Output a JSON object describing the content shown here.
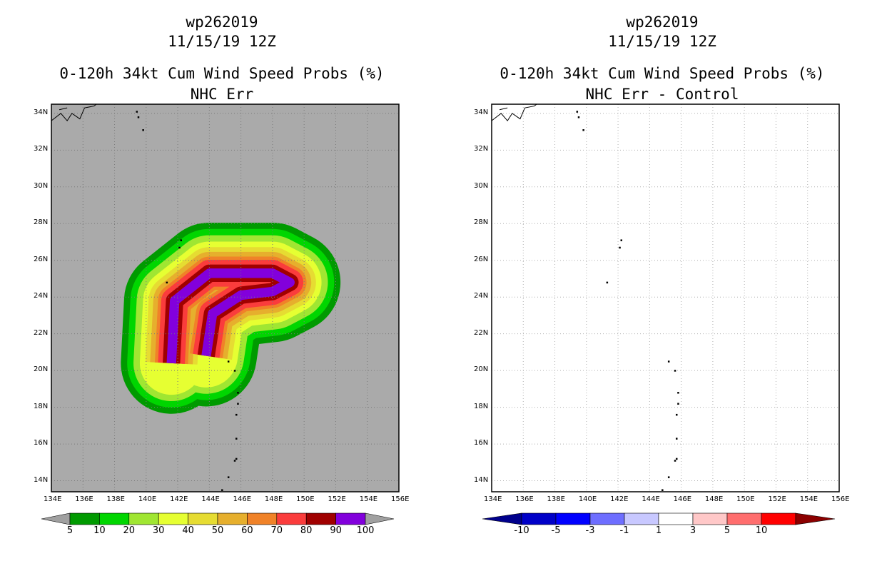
{
  "left_panel": {
    "storm_id": "wp262019",
    "datetime": "11/15/19 12Z",
    "product": "0-120h 34kt Cum Wind Speed Probs (%)",
    "subtitle": "NHC Err",
    "background": "#aaaaaa"
  },
  "right_panel": {
    "storm_id": "wp262019",
    "datetime": "11/15/19 12Z",
    "product": "0-120h 34kt Cum Wind Speed Probs (%)",
    "subtitle": "NHC Err - Control",
    "background": "#ffffff"
  },
  "chart_data": [
    {
      "type": "heatmap",
      "title": "0-120h 34kt Cum Wind Speed Probs (%)",
      "subtitle": "NHC Err",
      "xlim": [
        134,
        156
      ],
      "ylim": [
        13.4,
        34.5
      ],
      "x_ticks": [
        "134E",
        "136E",
        "138E",
        "140E",
        "142E",
        "144E",
        "146E",
        "148E",
        "150E",
        "152E",
        "154E",
        "156E"
      ],
      "y_ticks": [
        "14N",
        "16N",
        "18N",
        "20N",
        "22N",
        "24N",
        "26N",
        "28N",
        "30N",
        "32N",
        "34N"
      ],
      "grid": true,
      "colorbar": {
        "levels": [
          "5",
          "10",
          "20",
          "30",
          "40",
          "50",
          "60",
          "70",
          "80",
          "90",
          "100"
        ],
        "colors": [
          "#009a00",
          "#00d600",
          "#a0e632",
          "#e6ff32",
          "#e6dc32",
          "#e6af2d",
          "#f08228",
          "#fa3c3c",
          "#a00000",
          "#8200dc"
        ],
        "under_color": "#a0a0a0",
        "over_color": "#a0a0a0"
      },
      "swath_axis": [
        [
          141.6,
          20.4
        ],
        [
          141.8,
          23.8
        ],
        [
          144,
          25.3
        ],
        [
          148,
          25.3
        ],
        [
          149.1,
          24.8
        ],
        [
          148,
          24.3
        ],
        [
          146,
          24.1
        ],
        [
          144.2,
          23.1
        ],
        [
          143.8,
          20.8
        ]
      ],
      "swath_halfwidths_deg": [
        3.2,
        2.8,
        2.4,
        2.0,
        1.65,
        1.35,
        1.05,
        0.85,
        0.55,
        0.3
      ]
    },
    {
      "type": "heatmap",
      "title": "0-120h 34kt Cum Wind Speed Probs (%)",
      "subtitle": "NHC Err - Control",
      "xlim": [
        134,
        156
      ],
      "ylim": [
        13.4,
        34.5
      ],
      "x_ticks": [
        "134E",
        "136E",
        "138E",
        "140E",
        "142E",
        "144E",
        "146E",
        "148E",
        "150E",
        "152E",
        "154E",
        "156E"
      ],
      "y_ticks": [
        "14N",
        "16N",
        "18N",
        "20N",
        "22N",
        "24N",
        "26N",
        "28N",
        "30N",
        "32N",
        "34N"
      ],
      "grid": true,
      "values_note": "difference field within -1..1 everywhere",
      "colorbar": {
        "levels": [
          "-10",
          "-5",
          "-3",
          "-1",
          "1",
          "3",
          "5",
          "10"
        ],
        "colors": [
          "#0000c8",
          "#0000ff",
          "#6e6eff",
          "#c8c8ff",
          "#ffffff",
          "#ffc8c8",
          "#ff6e6e",
          "#ff0000"
        ],
        "under_color": "#00008c",
        "over_color": "#8c0000"
      }
    }
  ]
}
